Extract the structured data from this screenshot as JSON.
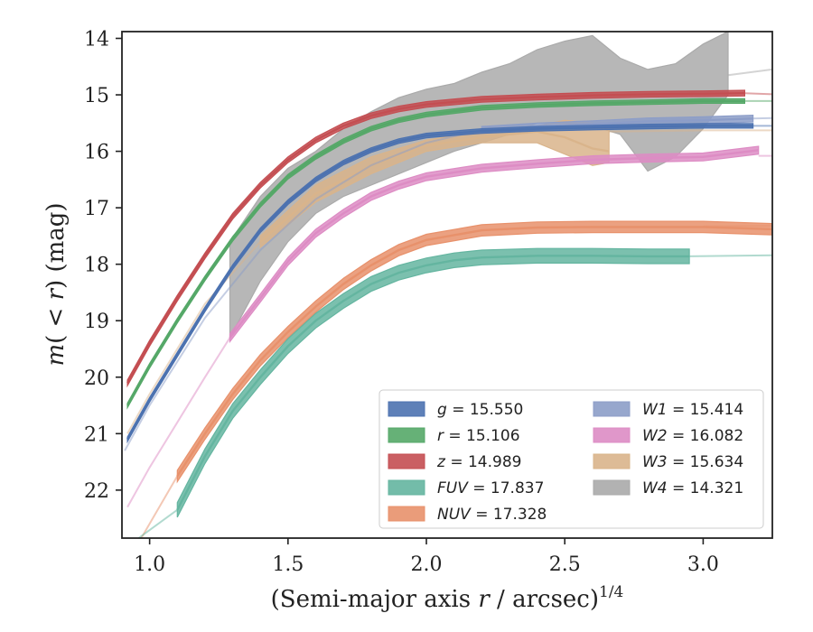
{
  "chart_data": {
    "type": "line",
    "xlabel": "(Semi-major axis r / arcsec)^1/4",
    "xlabel_parts": {
      "prefix": "(Semi-major axis ",
      "var": "r",
      "suffix": " / arcsec)",
      "sup": "1/4"
    },
    "ylabel": "m(< r) (mag)",
    "ylabel_parts": {
      "m": "m",
      "open": "(",
      "lt": " < ",
      "r": "r",
      "close": ")",
      "unit": " (mag)"
    },
    "xlim": [
      0.9,
      3.25
    ],
    "ylim": [
      22.85,
      13.88
    ],
    "y_inverted": true,
    "xticks": [
      1.0,
      1.5,
      2.0,
      2.5,
      3.0
    ],
    "xtick_labels": [
      "1.0",
      "1.5",
      "2.0",
      "2.5",
      "3.0"
    ],
    "yticks": [
      14,
      15,
      16,
      17,
      18,
      19,
      20,
      21,
      22
    ],
    "ytick_labels": [
      "14",
      "15",
      "16",
      "17",
      "18",
      "19",
      "20",
      "21",
      "22"
    ],
    "grid": false,
    "legend_position": "lower-right",
    "series": [
      {
        "name": "g",
        "legend_label": "g = 15.550",
        "color": "#4c72b0",
        "x": [
          0.92,
          1.0,
          1.1,
          1.2,
          1.3,
          1.4,
          1.5,
          1.6,
          1.7,
          1.8,
          1.9,
          2.0,
          2.2,
          2.4,
          2.6,
          2.8,
          3.0,
          3.18
        ],
        "y": [
          21.1,
          20.4,
          19.6,
          18.8,
          18.05,
          17.4,
          16.9,
          16.5,
          16.2,
          15.98,
          15.82,
          15.72,
          15.64,
          15.6,
          15.58,
          15.56,
          15.55,
          15.55
        ],
        "ext_x": [
          3.18,
          3.25
        ],
        "ext_y": [
          15.55,
          15.55
        ],
        "band": 0.04
      },
      {
        "name": "r",
        "legend_label": "r = 15.106",
        "color": "#55a868",
        "x": [
          0.92,
          1.0,
          1.1,
          1.2,
          1.3,
          1.4,
          1.5,
          1.6,
          1.7,
          1.8,
          1.9,
          2.0,
          2.2,
          2.4,
          2.6,
          2.8,
          3.0,
          3.15
        ],
        "y": [
          20.5,
          19.8,
          19.0,
          18.25,
          17.55,
          16.95,
          16.45,
          16.1,
          15.82,
          15.6,
          15.45,
          15.35,
          15.23,
          15.18,
          15.15,
          15.13,
          15.11,
          15.11
        ],
        "ext_x": [
          3.15,
          3.25
        ],
        "ext_y": [
          15.11,
          15.11
        ],
        "band": 0.04
      },
      {
        "name": "z",
        "legend_label": "z = 14.989",
        "color": "#c44e52",
        "x": [
          0.92,
          1.0,
          1.1,
          1.2,
          1.3,
          1.4,
          1.5,
          1.6,
          1.7,
          1.8,
          1.9,
          2.0,
          2.2,
          2.4,
          2.6,
          2.8,
          3.0,
          3.15
        ],
        "y": [
          20.1,
          19.4,
          18.6,
          17.85,
          17.15,
          16.6,
          16.15,
          15.8,
          15.55,
          15.37,
          15.25,
          15.17,
          15.08,
          15.04,
          15.01,
          14.99,
          14.98,
          14.97
        ],
        "ext_x": [
          3.15,
          3.25
        ],
        "ext_y": [
          14.97,
          14.99
        ],
        "band": 0.05
      },
      {
        "name": "FUV",
        "legend_label": "FUV = 17.837",
        "color": "#64b5a0",
        "x": [
          1.1,
          1.2,
          1.3,
          1.4,
          1.5,
          1.6,
          1.7,
          1.8,
          1.9,
          2.0,
          2.1,
          2.2,
          2.4,
          2.6,
          2.8,
          2.95
        ],
        "y": [
          22.35,
          21.4,
          20.6,
          20.0,
          19.45,
          19.0,
          18.65,
          18.35,
          18.15,
          18.02,
          17.93,
          17.88,
          17.85,
          17.85,
          17.86,
          17.86
        ],
        "ext_x": [
          2.95,
          3.25
        ],
        "ext_y": [
          17.86,
          17.84
        ],
        "ext_pre_x": [
          0.96,
          1.1
        ],
        "ext_pre_y": [
          22.85,
          22.35
        ],
        "band": 0.13
      },
      {
        "name": "NUV",
        "legend_label": "NUV = 17.328",
        "color": "#e8916b",
        "x": [
          1.1,
          1.2,
          1.3,
          1.4,
          1.5,
          1.6,
          1.7,
          1.8,
          1.9,
          2.0,
          2.2,
          2.4,
          2.6,
          2.8,
          3.0,
          3.25
        ],
        "y": [
          21.75,
          21.0,
          20.3,
          19.7,
          19.2,
          18.75,
          18.35,
          18.02,
          17.75,
          17.57,
          17.4,
          17.35,
          17.34,
          17.34,
          17.34,
          17.38
        ],
        "ext_x": [
          3.0,
          3.25
        ],
        "ext_y": [
          17.33,
          17.32
        ],
        "ext_pre_x": [
          0.97,
          1.1
        ],
        "ext_pre_y": [
          22.85,
          21.75
        ],
        "band": 0.1
      },
      {
        "name": "W1",
        "legend_label": "W1 = 15.414",
        "color": "#8c9dc8",
        "x": [
          2.2,
          2.4,
          2.6,
          2.8,
          3.0,
          3.18
        ],
        "y": [
          15.62,
          15.56,
          15.52,
          15.47,
          15.45,
          15.42
        ],
        "ext_pre_x": [
          0.91,
          1.0,
          1.2,
          1.4,
          1.6,
          1.8,
          2.0,
          2.2
        ],
        "ext_pre_y": [
          21.3,
          20.5,
          18.95,
          17.75,
          16.85,
          16.25,
          15.85,
          15.62
        ],
        "ext_x": [
          3.18,
          3.25
        ],
        "ext_y": [
          15.42,
          15.41
        ],
        "band": 0.06
      },
      {
        "name": "W2",
        "legend_label": "W2 = 16.082",
        "color": "#dd8cc4",
        "x": [
          1.29,
          1.4,
          1.5,
          1.6,
          1.7,
          1.8,
          1.9,
          2.0,
          2.2,
          2.4,
          2.6,
          2.8,
          3.0,
          3.2
        ],
        "y": [
          19.3,
          18.6,
          17.95,
          17.45,
          17.1,
          16.8,
          16.6,
          16.45,
          16.3,
          16.22,
          16.15,
          16.12,
          16.1,
          15.98
        ],
        "ext_pre_x": [
          0.92,
          1.0,
          1.1,
          1.2,
          1.29
        ],
        "ext_pre_y": [
          22.3,
          21.6,
          20.8,
          20.0,
          19.3
        ],
        "ext_x": [
          3.2,
          3.25
        ],
        "ext_y": [
          16.08,
          16.08
        ],
        "band": 0.07
      },
      {
        "name": "W3",
        "legend_label": "W3 = 15.634",
        "color": "#d9b48b",
        "x": [
          1.4,
          1.6,
          1.8,
          2.0,
          2.2,
          2.4,
          2.5,
          2.6,
          2.66
        ],
        "y": [
          17.6,
          16.75,
          16.25,
          15.9,
          15.75,
          15.65,
          15.75,
          15.95,
          16.0
        ],
        "ext_pre_x": [
          0.92,
          1.0,
          1.2,
          1.4
        ],
        "ext_pre_y": [
          21.0,
          20.3,
          18.7,
          17.6
        ],
        "ext_x": [
          2.66,
          3.0,
          3.25
        ],
        "ext_y": [
          15.65,
          15.63,
          15.63
        ],
        "band_lo": [
          17.5,
          16.6,
          16.1,
          15.8,
          15.65,
          15.55,
          15.45,
          15.5,
          15.6
        ],
        "band_hi": [
          17.7,
          16.9,
          16.4,
          16.0,
          15.85,
          15.85,
          16.05,
          16.25,
          16.2
        ]
      },
      {
        "name": "W4",
        "legend_label": "W4 = 14.321",
        "color": "#aaaaaa",
        "x": [
          1.29,
          1.4,
          1.5,
          1.6,
          1.7,
          1.8,
          1.9,
          2.0,
          2.1,
          2.2,
          2.3,
          2.4,
          2.5,
          2.6,
          2.7,
          2.8,
          2.9,
          3.0,
          3.09
        ],
        "y": [
          18.5,
          17.6,
          17.0,
          16.6,
          16.3,
          16.0,
          15.8,
          15.65,
          15.5,
          15.35,
          15.2,
          15.0,
          14.9,
          14.85,
          15.1,
          15.45,
          15.3,
          14.9,
          14.7
        ],
        "band_lo": [
          17.6,
          16.8,
          16.3,
          16.0,
          15.6,
          15.3,
          15.05,
          14.9,
          14.8,
          14.6,
          14.45,
          14.2,
          14.05,
          13.95,
          14.35,
          14.55,
          14.45,
          14.1,
          13.88
        ],
        "band_hi": [
          19.3,
          18.3,
          17.6,
          17.1,
          16.8,
          16.6,
          16.4,
          16.2,
          16.0,
          15.85,
          15.7,
          15.5,
          15.5,
          15.55,
          15.7,
          16.35,
          16.1,
          15.6,
          15.0
        ],
        "ext_x": [
          3.09,
          3.25
        ],
        "ext_y": [
          14.65,
          14.55
        ]
      }
    ]
  }
}
